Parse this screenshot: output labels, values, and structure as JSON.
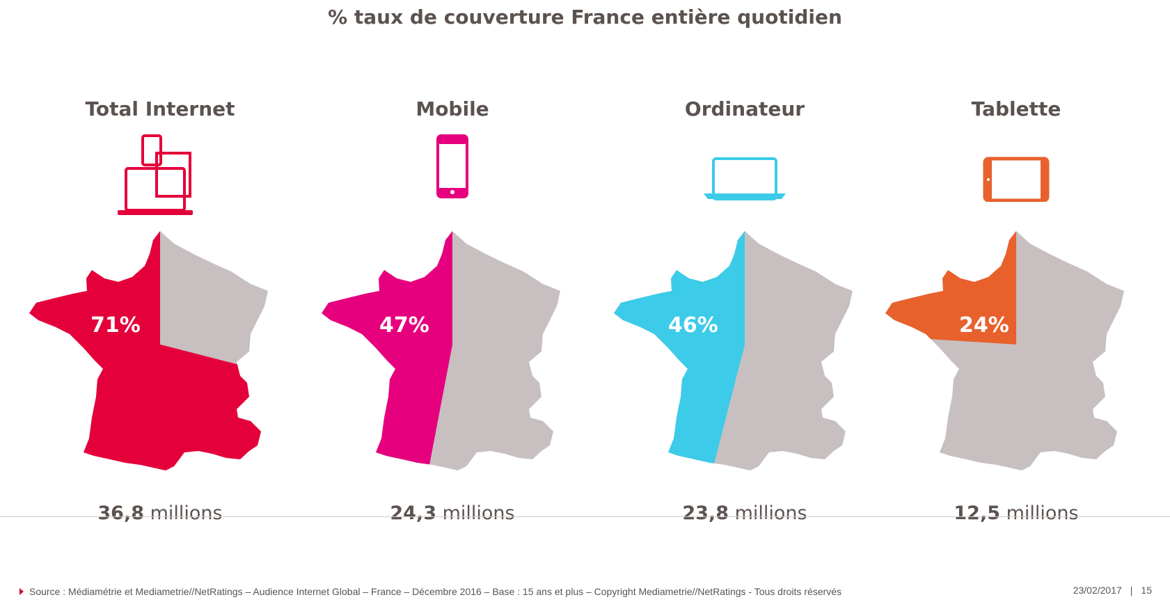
{
  "title": "% taux de couverture France entière quotidien",
  "chart_data": {
    "type": "pie",
    "categories": [
      "Total Internet",
      "Mobile",
      "Ordinateur",
      "Tablette"
    ],
    "values": [
      71,
      47,
      46,
      24
    ],
    "unit": "%",
    "audience": [
      {
        "value": "36,8",
        "unit": "millions"
      },
      {
        "value": "24,3",
        "unit": "millions"
      },
      {
        "value": "23,8",
        "unit": "millions"
      },
      {
        "value": "12,5",
        "unit": "millions"
      }
    ],
    "colors": [
      "#e4003a",
      "#e6007e",
      "#3ccbe8",
      "#e8612c"
    ],
    "rest_color": "#c8bfc0"
  },
  "panels": [
    {
      "label": "Total Internet",
      "pct": "71%",
      "millions_value": "36,8",
      "millions_unit": "millions",
      "icon": "multi-device-icon"
    },
    {
      "label": "Mobile",
      "pct": "47%",
      "millions_value": "24,3",
      "millions_unit": "millions",
      "icon": "smartphone-icon"
    },
    {
      "label": "Ordinateur",
      "pct": "46%",
      "millions_value": "23,8",
      "millions_unit": "millions",
      "icon": "laptop-icon"
    },
    {
      "label": "Tablette",
      "pct": "24%",
      "millions_value": "12,5",
      "millions_unit": "millions",
      "icon": "tablet-icon"
    }
  ],
  "footer": {
    "source": "Source : Médiamétrie et Mediametrie//NetRatings – Audience Internet Global – France – Décembre 2016 – Base : 15 ans et plus – Copyright Mediametrie//NetRatings - Tous droits réservés",
    "date": "23/02/2017",
    "page": "15"
  }
}
